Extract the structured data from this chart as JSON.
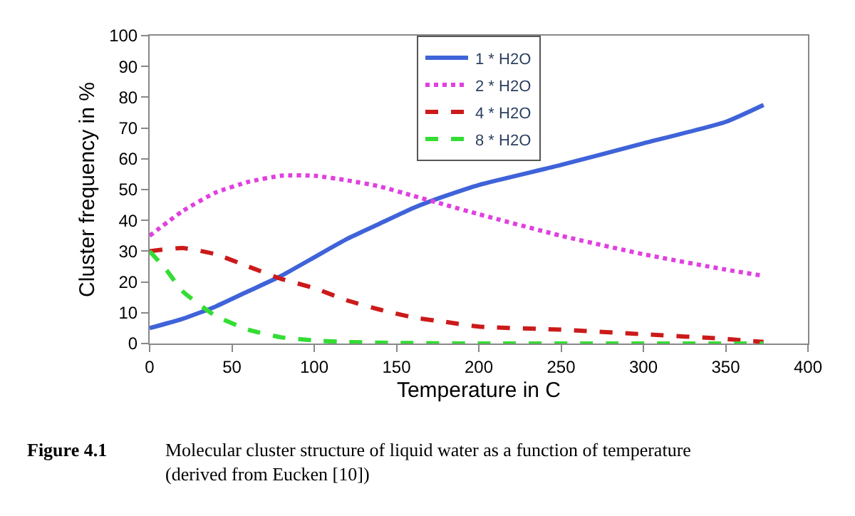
{
  "chart_data": {
    "type": "line",
    "xlabel": "Temperature in C",
    "ylabel": "Cluster frequency in %",
    "xlim": [
      0,
      400
    ],
    "xticks": [
      0,
      50,
      100,
      150,
      200,
      250,
      300,
      350,
      400
    ],
    "ylim": [
      0,
      100
    ],
    "yticks": [
      0,
      10,
      20,
      30,
      40,
      50,
      60,
      70,
      80,
      90,
      100
    ],
    "legend": "top",
    "marker": "none",
    "series": [
      {
        "name": "1 * H2O",
        "color": "#3f63d8",
        "line_style": "solid",
        "x": [
          0,
          20,
          40,
          60,
          80,
          100,
          120,
          140,
          160,
          180,
          200,
          250,
          300,
          350,
          373
        ],
        "values": [
          5,
          8,
          12,
          17,
          22,
          28,
          34,
          39,
          44,
          48,
          51.5,
          58,
          65,
          72,
          77.5
        ]
      },
      {
        "name": "2 * H2O",
        "color": "#e040e0",
        "line_style": "dotted",
        "x": [
          0,
          20,
          40,
          60,
          80,
          100,
          120,
          140,
          160,
          180,
          200,
          250,
          300,
          350,
          373
        ],
        "values": [
          35,
          43,
          49,
          52.5,
          54.5,
          54.5,
          53,
          51,
          48,
          45,
          42,
          35,
          29,
          24,
          22
        ]
      },
      {
        "name": "4 * H2O",
        "color": "#cc1a1a",
        "line_style": "dashed",
        "x": [
          0,
          20,
          40,
          60,
          80,
          100,
          120,
          140,
          160,
          180,
          200,
          250,
          300,
          350,
          373
        ],
        "values": [
          30,
          31,
          29,
          25,
          21,
          18,
          14,
          11,
          8.5,
          7,
          5.5,
          4.5,
          3,
          1.5,
          0.5
        ]
      },
      {
        "name": "8 * H2O",
        "color": "#33dd33",
        "line_style": "dashed",
        "x": [
          0,
          10,
          20,
          40,
          60,
          80,
          100,
          120,
          150,
          200,
          373
        ],
        "values": [
          30,
          24,
          17,
          9,
          4.5,
          2,
          1,
          0.5,
          0.2,
          0,
          0
        ]
      }
    ],
    "annotations": [
      "Figure 4.1",
      "Molecular cluster structure of liquid water as a function of temperature (derived from Eucken [10])"
    ]
  }
}
